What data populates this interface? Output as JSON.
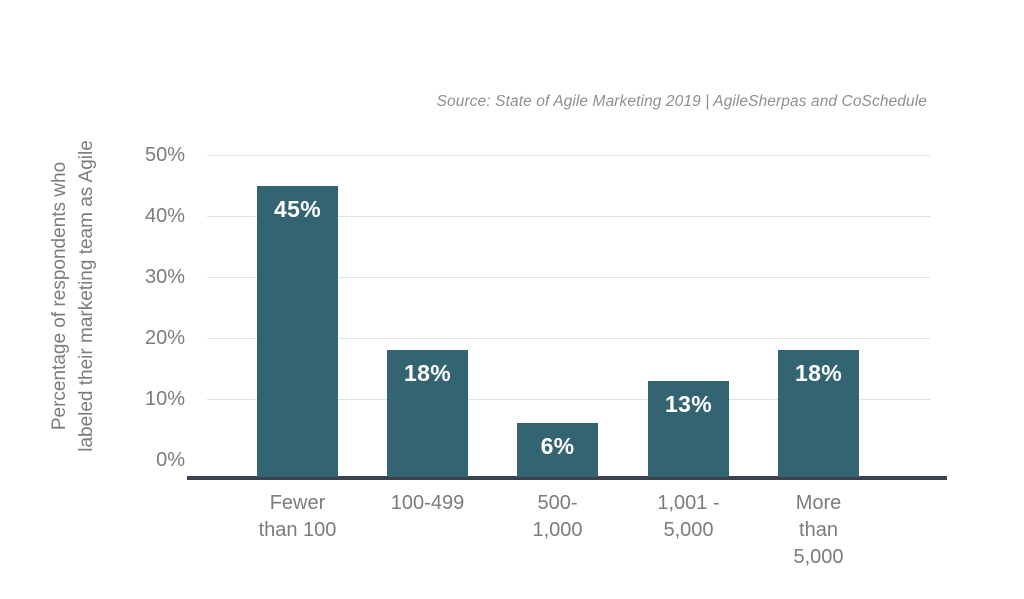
{
  "source_note": "Source: State of Agile Marketing 2019 | AgileSherpas and CoSchedule",
  "chart_data": {
    "type": "bar",
    "title": "",
    "categories": [
      "Fewer than 100",
      "100-499",
      "500-1,000",
      "1,001 - 5,000",
      "More than 5,000"
    ],
    "category_lines": [
      [
        "Fewer",
        "than 100"
      ],
      [
        "100-499"
      ],
      [
        "500-",
        "1,000"
      ],
      [
        "1,001 -",
        "5,000"
      ],
      [
        "More",
        "than",
        "5,000"
      ]
    ],
    "values": [
      45,
      18,
      6,
      13,
      18
    ],
    "value_labels": [
      "45%",
      "18%",
      "6%",
      "13%",
      "18%"
    ],
    "xlabel": "",
    "ylabel": "Percentage of respondents who labeled their marketing team as Agile",
    "ylabel_lines": [
      "Percentage of respondents who",
      "labeled their marketing team as Agile"
    ],
    "yticks": [
      "0%",
      "10%",
      "20%",
      "30%",
      "40%",
      "50%"
    ],
    "ylim": [
      0,
      50
    ],
    "grid": true,
    "legend": false,
    "colors": {
      "bar": "#336472",
      "axis_line": "#3a4250",
      "gridline": "#d9e6e3",
      "tick_text": "#7c7c7c",
      "value_label_text": "#ffffff",
      "source_text": "#8f8f8f"
    }
  }
}
